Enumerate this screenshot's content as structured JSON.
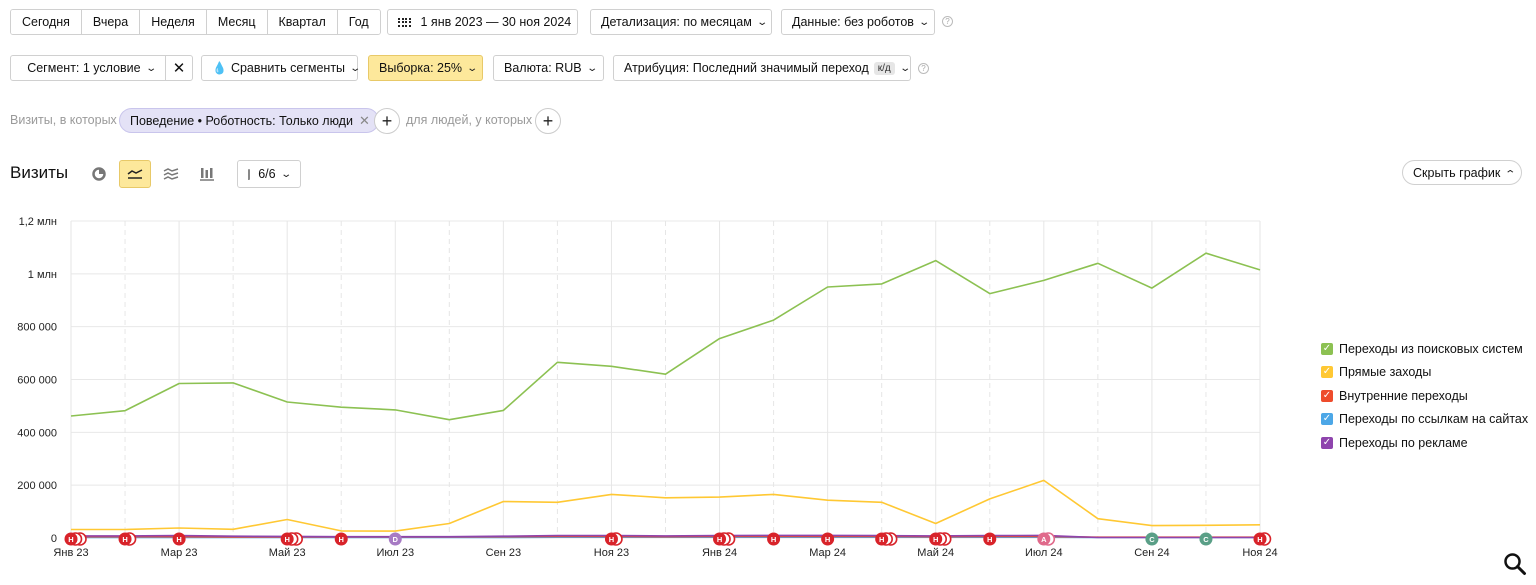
{
  "periods": [
    "Сегодня",
    "Вчера",
    "Неделя",
    "Месяц",
    "Квартал",
    "Год"
  ],
  "date_range": "1 янв 2023 — 30 ноя 2024",
  "detail": "Детализация: по месяцам",
  "data_filter": "Данные: без роботов",
  "segment": "Сегмент: 1 условие",
  "compare": "Сравнить сегменты",
  "sample": "Выборка: 25%",
  "currency": "Валюта: RUB",
  "attribution": "Атрибуция: Последний значимый переход",
  "attribution_badge": "к/д",
  "help_mark": "?",
  "visits_prefix": "Визиты, в которых",
  "behavior_chip": "Поведение • Роботность: Только люди",
  "people_suffix": "для людей, у которых",
  "chart_title": "Визиты",
  "annotations_count": "6/6",
  "hide_chart": "Скрыть график",
  "colors": {
    "search": "#8cc152",
    "direct": "#ffc833",
    "internal": "#ee4c2c",
    "links": "#4ca7e7",
    "ads": "#8e44ad",
    "marker_red": "#d8232a",
    "marker_purple": "#a77bc4",
    "marker_green": "#5a9f87",
    "marker_pink": "#e06a8b"
  },
  "chart_data": {
    "type": "line",
    "title": "Визиты",
    "x": [
      "Янв 23",
      "Фев 23",
      "Мар 23",
      "Апр 23",
      "Май 23",
      "Июн 23",
      "Июл 23",
      "Авг 23",
      "Сен 23",
      "Окт 23",
      "Ноя 23",
      "Дек 23",
      "Янв 24",
      "Фев 24",
      "Мар 24",
      "Апр 24",
      "Май 24",
      "Июн 24",
      "Июл 24",
      "Авг 24",
      "Сен 24",
      "Окт 24",
      "Ноя 24"
    ],
    "x_tick_labels": [
      "Янв 23",
      "Мар 23",
      "Май 23",
      "Июл 23",
      "Сен 23",
      "Ноя 23",
      "Янв 24",
      "Мар 24",
      "Май 24",
      "Июл 24",
      "Сен 24",
      "Ноя 24"
    ],
    "y_ticks": [
      0,
      200000,
      400000,
      600000,
      800000,
      1000000,
      1200000
    ],
    "y_tick_labels": [
      "0",
      "200 000",
      "400 000",
      "600 000",
      "800 000",
      "1 млн",
      "1,2 млн"
    ],
    "ylim": [
      0,
      1200000
    ],
    "grid": true,
    "legend_position": "right",
    "series": [
      {
        "name": "Переходы из поисковых систем",
        "color": "#8cc152",
        "values": [
          462000,
          482000,
          585000,
          587000,
          515000,
          495000,
          485000,
          448000,
          483000,
          665000,
          650000,
          620000,
          755000,
          825000,
          950000,
          962000,
          1050000,
          925000,
          975000,
          1040000,
          946000,
          1078000,
          1015000
        ]
      },
      {
        "name": "Прямые заходы",
        "color": "#ffc833",
        "values": [
          32000,
          32000,
          38000,
          33000,
          70000,
          27000,
          26000,
          55000,
          138000,
          135000,
          165000,
          152000,
          155000,
          165000,
          143000,
          135000,
          55000,
          148000,
          218000,
          73000,
          47000,
          48000,
          50000
        ]
      },
      {
        "name": "Внутренние переходы",
        "color": "#ee4c2c",
        "values": [
          5000,
          5000,
          5000,
          4000,
          4000,
          4000,
          4000,
          4000,
          5000,
          6000,
          6000,
          5000,
          6000,
          6000,
          6000,
          6000,
          5000,
          6000,
          6000,
          3000,
          3000,
          3000,
          3000
        ]
      },
      {
        "name": "Переходы по ссылкам на сайтах",
        "color": "#4ca7e7",
        "values": [
          2000,
          2000,
          2000,
          2000,
          2000,
          2000,
          2000,
          2000,
          2000,
          3000,
          3000,
          3000,
          3000,
          3000,
          3000,
          3000,
          3000,
          3000,
          3000,
          2000,
          2000,
          2000,
          2000
        ]
      },
      {
        "name": "Переходы по рекламе",
        "color": "#8e44ad",
        "values": [
          8000,
          8000,
          9000,
          7000,
          6000,
          5000,
          5000,
          5000,
          7000,
          9000,
          9000,
          8000,
          9000,
          10000,
          10000,
          9000,
          8000,
          9000,
          10000,
          2000,
          2000,
          2000,
          2000
        ]
      }
    ],
    "markers": [
      {
        "month": 0,
        "label": "Н",
        "type": "red",
        "stack": 3
      },
      {
        "month": 1,
        "label": "Н",
        "type": "red",
        "stack": 2
      },
      {
        "month": 2,
        "label": "Н",
        "type": "red",
        "stack": 1
      },
      {
        "month": 4,
        "label": "Н",
        "type": "red",
        "stack": 3
      },
      {
        "month": 5,
        "label": "Н",
        "type": "red",
        "stack": 1
      },
      {
        "month": 6,
        "label": "D",
        "type": "purple",
        "stack": 1
      },
      {
        "month": 10,
        "label": "Н",
        "type": "red",
        "stack": 2
      },
      {
        "month": 12,
        "label": "Н",
        "type": "red",
        "stack": 3
      },
      {
        "month": 13,
        "label": "Н",
        "type": "red",
        "stack": 1
      },
      {
        "month": 14,
        "label": "Н",
        "type": "red",
        "stack": 1
      },
      {
        "month": 15,
        "label": "Н",
        "type": "red",
        "stack": 3
      },
      {
        "month": 16,
        "label": "Н",
        "type": "red",
        "stack": 3
      },
      {
        "month": 17,
        "label": "Н",
        "type": "red",
        "stack": 1
      },
      {
        "month": 18,
        "label": "A",
        "type": "pink",
        "stack": 2
      },
      {
        "month": 20,
        "label": "C",
        "type": "green",
        "stack": 1
      },
      {
        "month": 21,
        "label": "C",
        "type": "green",
        "stack": 1
      },
      {
        "month": 22,
        "label": "Н",
        "type": "red",
        "stack": 2
      }
    ]
  }
}
